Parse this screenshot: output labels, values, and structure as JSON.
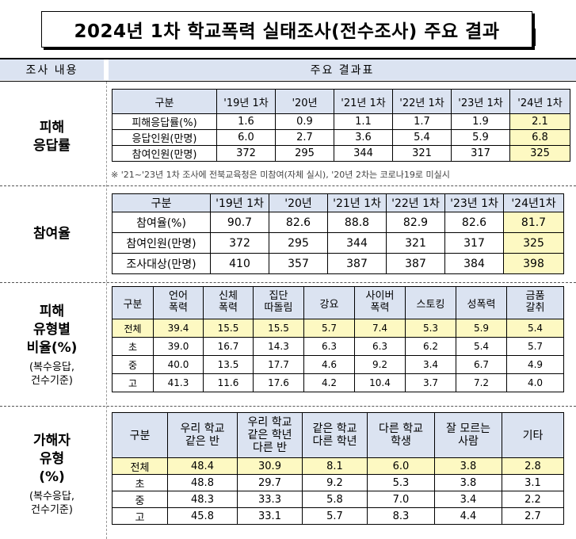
{
  "title": "2024년 1차 학교폭력 실태조사(전수조사) 주요 결과",
  "header": {
    "left": "조사 내용",
    "right": "주요 결과표"
  },
  "sections": {
    "s1": {
      "label_lines": [
        "피해",
        "응답률"
      ]
    },
    "s2": {
      "label_lines": [
        "참여율"
      ]
    },
    "s3": {
      "label_lines": [
        "피해",
        "유형별",
        "비율(%)"
      ],
      "sub_lines": [
        "(복수응답,",
        "건수기준)"
      ]
    },
    "s4": {
      "label_lines": [
        "가해자",
        "유형",
        "(%)"
      ],
      "sub_lines": [
        "(복수응답,",
        "건수기준)"
      ]
    }
  },
  "table1": {
    "headers": [
      "구분",
      "'19년 1차",
      "'20년",
      "'21년 1차",
      "'22년 1차",
      "'23년 1차",
      "'24년 1차"
    ],
    "rows": [
      [
        "피해응답률(%)",
        "1.6",
        "0.9",
        "1.1",
        "1.7",
        "1.9",
        "2.1"
      ],
      [
        "응답인원(만명)",
        "6.0",
        "2.7",
        "3.6",
        "5.4",
        "5.9",
        "6.8"
      ],
      [
        "참여인원(만명)",
        "372",
        "295",
        "344",
        "321",
        "317",
        "325"
      ]
    ],
    "note": "※ '21~'23년 1차 조사에 전북교육청은 미참여(자체 실시), '20년 2차는 코로나19로 미실시"
  },
  "table2": {
    "headers": [
      "구분",
      "'19년 1차",
      "'20년",
      "'21년 1차",
      "'22년 1차",
      "'23년 1차",
      "'24년1차"
    ],
    "rows": [
      [
        "참여율(%)",
        "90.7",
        "82.6",
        "88.8",
        "82.9",
        "82.6",
        "81.7"
      ],
      [
        "참여인원(만명)",
        "372",
        "295",
        "344",
        "321",
        "317",
        "325"
      ],
      [
        "조사대상(만명)",
        "410",
        "357",
        "387",
        "387",
        "384",
        "398"
      ]
    ]
  },
  "table3": {
    "headers": [
      "구분",
      "언어\n폭력",
      "신체\n폭력",
      "집단\n따돌림",
      "강요",
      "사이버\n폭력",
      "스토킹",
      "성폭력",
      "금품\n갈취"
    ],
    "rows": [
      [
        "전체",
        "39.4",
        "15.5",
        "15.5",
        "5.7",
        "7.4",
        "5.3",
        "5.9",
        "5.4"
      ],
      [
        "초",
        "39.0",
        "16.7",
        "14.3",
        "6.3",
        "6.3",
        "6.2",
        "5.4",
        "5.7"
      ],
      [
        "중",
        "40.0",
        "13.5",
        "17.7",
        "4.6",
        "9.2",
        "3.4",
        "6.7",
        "4.9"
      ],
      [
        "고",
        "41.3",
        "11.6",
        "17.6",
        "4.2",
        "10.4",
        "3.7",
        "7.2",
        "4.0"
      ]
    ]
  },
  "table4": {
    "headers": [
      "구분",
      "우리 학교\n같은 반",
      "우리 학교\n같은 학년\n다른 반",
      "같은 학교\n다른 학년",
      "다른 학교\n학생",
      "잘 모르는\n사람",
      "기타"
    ],
    "rows": [
      [
        "전체",
        "48.4",
        "30.9",
        "8.1",
        "6.0",
        "3.8",
        "2.8"
      ],
      [
        "초",
        "48.8",
        "29.7",
        "9.2",
        "5.3",
        "3.8",
        "3.1"
      ],
      [
        "중",
        "48.3",
        "33.3",
        "5.8",
        "7.0",
        "3.4",
        "2.2"
      ],
      [
        "고",
        "45.8",
        "33.1",
        "5.7",
        "8.3",
        "4.4",
        "2.7"
      ]
    ]
  },
  "colors": {
    "header_fill": "#dbe3f1",
    "highlight_fill": "#fdf9c2"
  }
}
